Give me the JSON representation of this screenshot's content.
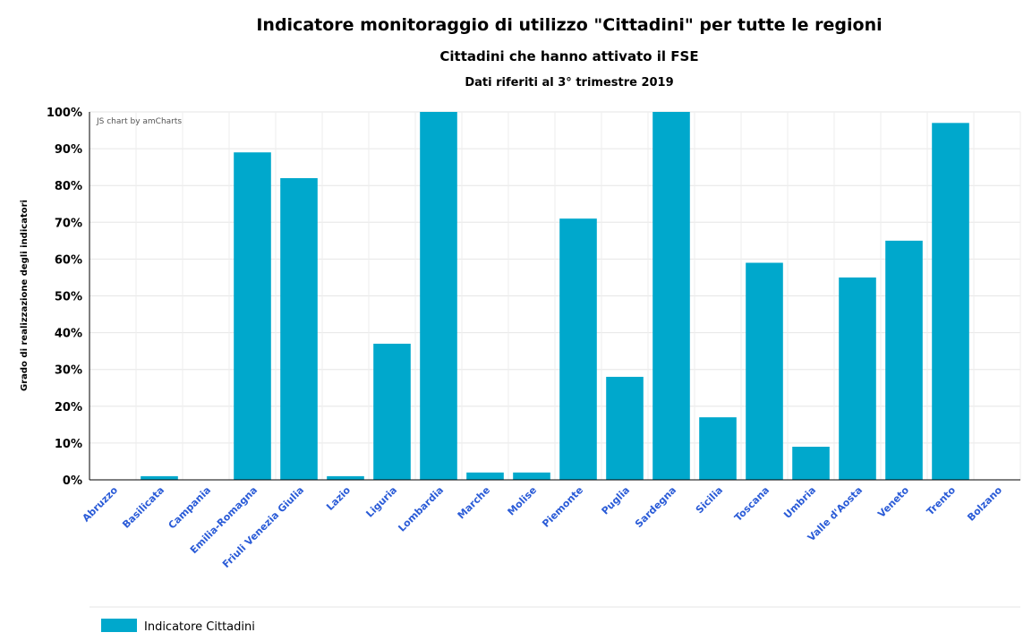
{
  "chart_data": {
    "type": "bar",
    "title": "Indicatore monitoraggio di utilizzo \"Cittadini\" per tutte le regioni",
    "subtitle": "Cittadini che hanno attivato il FSE",
    "subtitle2": "Dati riferiti al 3° trimestre 2019",
    "ylabel": "Grado di realizzazione degli indicatori",
    "credit": "JS chart by amCharts",
    "ylim": [
      0,
      100
    ],
    "yticks": [
      "0%",
      "10%",
      "20%",
      "30%",
      "40%",
      "50%",
      "60%",
      "70%",
      "80%",
      "90%",
      "100%"
    ],
    "categories": [
      "Abruzzo",
      "Basilicata",
      "Campania",
      "Emilia-Romagna",
      "Friuli Venezia Giulia",
      "Lazio",
      "Liguria",
      "Lombardia",
      "Marche",
      "Molise",
      "Piemonte",
      "Puglia",
      "Sardegna",
      "Sicilia",
      "Toscana",
      "Umbria",
      "Valle d'Aosta",
      "Veneto",
      "Trento",
      "Bolzano"
    ],
    "series": [
      {
        "name": "Indicatore Cittadini",
        "color": "#00a8cc",
        "values": [
          0,
          1,
          0,
          89,
          82,
          1,
          37,
          100,
          2,
          2,
          71,
          28,
          100,
          17,
          59,
          9,
          55,
          65,
          97,
          0
        ]
      }
    ],
    "grid": true,
    "legend": "bottom-left"
  }
}
